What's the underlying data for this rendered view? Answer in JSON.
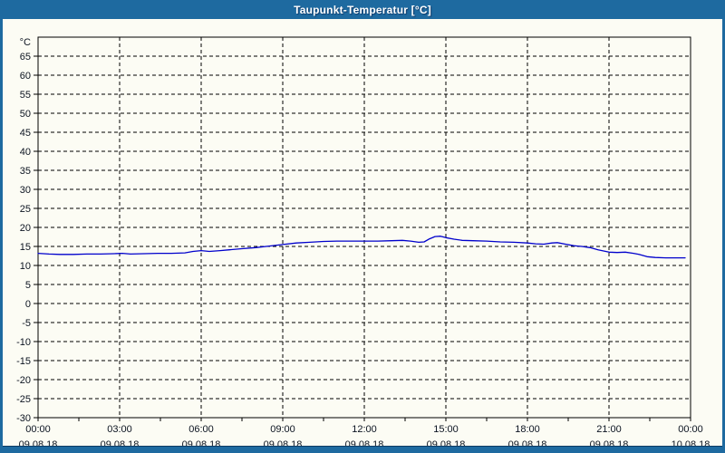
{
  "window": {
    "title": "Taupunkt-Temperatur [°C]",
    "frame_color": "#1E6AA0",
    "client_bg": "#FCFCF4"
  },
  "chart_data": {
    "type": "line",
    "title": "Taupunkt-Temperatur [°C]",
    "unit_label": "°C",
    "grid": {
      "dashed": true,
      "color": "#000000",
      "visible": true
    },
    "legend": {
      "visible": false
    },
    "x_axis": {
      "range_hours": [
        0,
        24
      ],
      "major_tick_hours": 3,
      "minor_tick_hours": 1.5,
      "tick_times": [
        "00:00",
        "03:00",
        "06:00",
        "09:00",
        "12:00",
        "15:00",
        "18:00",
        "21:00",
        "00:00"
      ],
      "tick_dates": [
        "09.08.18",
        "09.08.18",
        "09.08.18",
        "09.08.18",
        "09.08.18",
        "09.08.18",
        "09.08.18",
        "09.08.18",
        "10.08.18"
      ]
    },
    "y_axis": {
      "min": -30,
      "max": 70,
      "step": 5,
      "label_min": -30,
      "label_max": 65,
      "grid_min": -25,
      "grid_max": 65
    },
    "series": [
      {
        "name": "Taupunkt-Temperatur",
        "color": "#0000CC",
        "points": [
          [
            0.0,
            13.2
          ],
          [
            0.4,
            13.0
          ],
          [
            0.8,
            12.9
          ],
          [
            1.3,
            12.9
          ],
          [
            1.8,
            13.0
          ],
          [
            2.3,
            13.0
          ],
          [
            2.8,
            13.1
          ],
          [
            3.1,
            13.2
          ],
          [
            3.4,
            13.0
          ],
          [
            3.9,
            13.1
          ],
          [
            4.4,
            13.2
          ],
          [
            4.9,
            13.2
          ],
          [
            5.4,
            13.3
          ],
          [
            5.7,
            13.7
          ],
          [
            6.0,
            13.9
          ],
          [
            6.3,
            13.7
          ],
          [
            6.7,
            13.9
          ],
          [
            7.0,
            14.1
          ],
          [
            7.5,
            14.4
          ],
          [
            8.0,
            14.7
          ],
          [
            8.5,
            15.1
          ],
          [
            9.0,
            15.5
          ],
          [
            9.5,
            15.9
          ],
          [
            10.0,
            16.1
          ],
          [
            10.5,
            16.3
          ],
          [
            11.0,
            16.4
          ],
          [
            11.5,
            16.4
          ],
          [
            12.0,
            16.4
          ],
          [
            12.5,
            16.4
          ],
          [
            13.0,
            16.5
          ],
          [
            13.4,
            16.6
          ],
          [
            13.7,
            16.4
          ],
          [
            14.0,
            16.1
          ],
          [
            14.2,
            16.2
          ],
          [
            14.4,
            17.0
          ],
          [
            14.6,
            17.6
          ],
          [
            14.8,
            17.7
          ],
          [
            15.0,
            17.3
          ],
          [
            15.3,
            16.9
          ],
          [
            15.6,
            16.6
          ],
          [
            16.0,
            16.5
          ],
          [
            16.5,
            16.4
          ],
          [
            17.0,
            16.2
          ],
          [
            17.5,
            16.1
          ],
          [
            18.0,
            15.9
          ],
          [
            18.3,
            15.7
          ],
          [
            18.6,
            15.6
          ],
          [
            18.9,
            15.9
          ],
          [
            19.1,
            16.0
          ],
          [
            19.4,
            15.6
          ],
          [
            19.7,
            15.2
          ],
          [
            20.0,
            15.0
          ],
          [
            20.3,
            14.7
          ],
          [
            20.6,
            14.1
          ],
          [
            21.0,
            13.5
          ],
          [
            21.3,
            13.4
          ],
          [
            21.6,
            13.5
          ],
          [
            21.9,
            13.2
          ],
          [
            22.1,
            12.9
          ],
          [
            22.4,
            12.3
          ],
          [
            22.7,
            12.1
          ],
          [
            23.1,
            12.0
          ],
          [
            23.5,
            12.0
          ],
          [
            23.8,
            12.0
          ]
        ]
      }
    ]
  }
}
